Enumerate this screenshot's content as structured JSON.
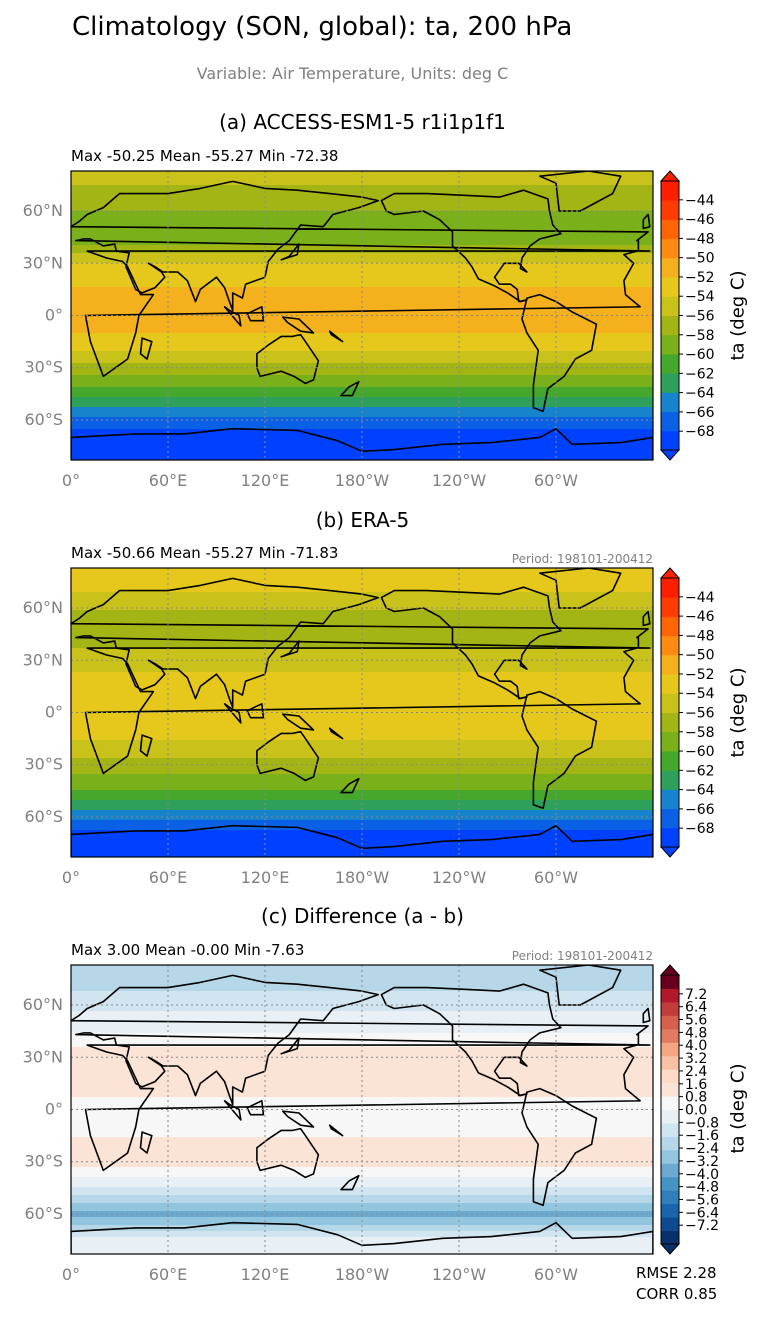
{
  "header": {
    "title": "Climatology (SON, global): ta, 200 hPa",
    "subtitle": "Variable: Air Temperature, Units: deg C"
  },
  "panels": [
    {
      "title": "(a) ACCESS-ESM1-5 r1i1p1f1",
      "stats": "Max -50.25 Mean -55.27 Min -72.38",
      "period": "",
      "colorbar_label": "ta (deg C)",
      "colorbar_ticks": [
        "−44",
        "−46",
        "−48",
        "−50",
        "−52",
        "−54",
        "−56",
        "−58",
        "−60",
        "−62",
        "−64",
        "−66",
        "−68"
      ]
    },
    {
      "title": "(b) ERA-5",
      "stats": "Max -50.66 Mean -55.27 Min -71.83",
      "period": "Period: 198101-200412",
      "colorbar_label": "ta (deg C)",
      "colorbar_ticks": [
        "−44",
        "−46",
        "−48",
        "−50",
        "−52",
        "−54",
        "−56",
        "−58",
        "−60",
        "−62",
        "−64",
        "−66",
        "−68"
      ]
    },
    {
      "title": "(c) Difference (a - b)",
      "stats": "Max 3.00 Mean -0.00 Min -7.63",
      "period": "Period: 198101-200412",
      "colorbar_label": "ta (deg C)",
      "colorbar_ticks": [
        "7.2",
        "6.4",
        "5.6",
        "4.8",
        "4.0",
        "3.2",
        "2.4",
        "1.6",
        "0.8",
        "0.0",
        "−0.8",
        "−1.6",
        "−2.4",
        "−3.2",
        "−4.0",
        "−4.8",
        "−5.6",
        "−6.4",
        "−7.2"
      ]
    }
  ],
  "axes": {
    "lat_ticks": [
      "60°N",
      "30°N",
      "0°",
      "30°S",
      "60°S"
    ],
    "lon_ticks": [
      "0°",
      "60°E",
      "120°E",
      "180°W",
      "120°W",
      "60°W"
    ]
  },
  "metrics": {
    "rmse": "RMSE 2.28",
    "corr": "CORR 0.85"
  },
  "chart_data": [
    {
      "type": "heatmap",
      "title": "(a) ACCESS-ESM1-5 r1i1p1f1",
      "lat": [
        75,
        60,
        45,
        30,
        15,
        0,
        -15,
        -30,
        -45,
        -60,
        -75
      ],
      "values_by_lat": [
        -56,
        -58,
        -59,
        -54,
        -52,
        -51,
        -53,
        -57,
        -61,
        -66,
        -70
      ],
      "clim": [
        -69,
        -43
      ],
      "colorbar_label": "ta (deg C)",
      "stats": {
        "max": -50.25,
        "mean": -55.27,
        "min": -72.38
      }
    },
    {
      "type": "heatmap",
      "title": "(b) ERA-5",
      "lat": [
        75,
        60,
        45,
        30,
        15,
        0,
        -15,
        -30,
        -45,
        -60,
        -75
      ],
      "values_by_lat": [
        -53,
        -56,
        -57,
        -55,
        -53,
        -53,
        -54,
        -57,
        -60,
        -65,
        -70
      ],
      "clim": [
        -69,
        -43
      ],
      "colorbar_label": "ta (deg C)",
      "stats": {
        "max": -50.66,
        "mean": -55.27,
        "min": -71.83
      }
    },
    {
      "type": "heatmap",
      "title": "(c) Difference (a - b)",
      "lat": [
        75,
        60,
        45,
        30,
        15,
        0,
        -15,
        -30,
        -45,
        -60,
        -75
      ],
      "values_by_lat": [
        -2.0,
        -1.0,
        0.0,
        1.5,
        1.0,
        0.6,
        0.8,
        1.2,
        -1.0,
        -3.5,
        -0.4
      ],
      "clim": [
        -8,
        8
      ],
      "colorbar_label": "ta (deg C)",
      "stats": {
        "max": 3.0,
        "mean": -0.0,
        "min": -7.63,
        "rmse": 2.28,
        "corr": 0.85
      }
    }
  ],
  "colors": {
    "temp_scale": [
      "#0040ff",
      "#0b61e6",
      "#1783cc",
      "#2ea05c",
      "#45a82c",
      "#7ab01a",
      "#a3b515",
      "#c8c21a",
      "#e6c81c",
      "#f5b01e",
      "#ff8c10",
      "#ff6406",
      "#ff3c00",
      "#ff1e00"
    ],
    "diff_scale": [
      "#08306b",
      "#0d4a8f",
      "#1865ac",
      "#2f7fbc",
      "#4393c3",
      "#6ba9d0",
      "#92c5de",
      "#b6d7e8",
      "#d1e5f0",
      "#e8f0f5",
      "#f7f7f7",
      "#fbe3d6",
      "#fddbc7",
      "#f8c0a4",
      "#f4a582",
      "#e07b62",
      "#d6604d",
      "#c23c3c",
      "#b2182b",
      "#67001f"
    ],
    "frame": "#000000",
    "tick_text": "#808080"
  }
}
